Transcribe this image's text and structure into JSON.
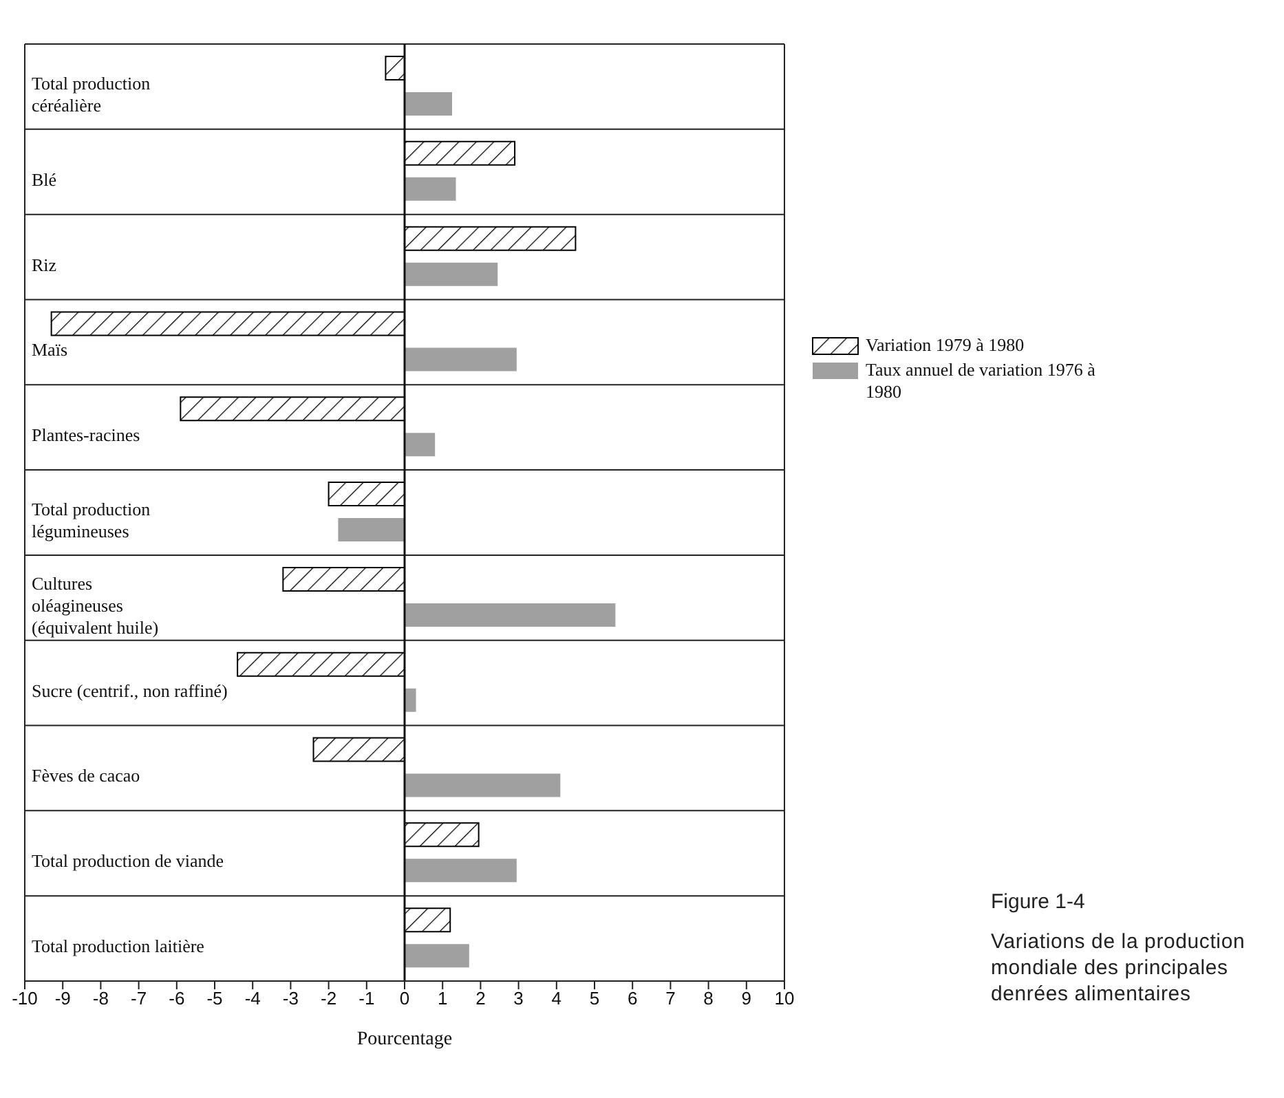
{
  "chart_data": {
    "type": "bar",
    "orientation": "horizontal",
    "title": "Variations de la production mondiale des principales denrées alimentaires",
    "annotations": [
      "Figure 1-4"
    ],
    "xlabel": "Pourcentage",
    "categories": [
      "Total production\ncéréalière",
      "Blé",
      "Riz",
      "Maïs",
      "Plantes-racines",
      "Total production\nlégumineuses",
      "Cultures\noléagineuses\n(équivalent huile)",
      "Sucre (centrif., non raffiné)",
      "Fèves de cacao",
      "Total production de viande",
      "Total production laitière"
    ],
    "series": [
      {
        "name": "Variation 1979 à 1980",
        "color": "#000000",
        "values": [
          -0.5,
          2.9,
          4.5,
          -9.3,
          -5.9,
          -2.0,
          -3.2,
          -4.4,
          -2.4,
          1.95,
          1.2
        ]
      },
      {
        "name": "Taux annuel de variation 1976 à 1980",
        "color": "#a0a0a0",
        "values": [
          1.25,
          1.35,
          2.45,
          2.95,
          0.8,
          -1.75,
          5.55,
          0.3,
          4.1,
          2.95,
          1.7
        ]
      }
    ],
    "xlim": [
      -10,
      10
    ],
    "xticks": [
      -10,
      -9,
      -8,
      -7,
      -6,
      -5,
      -4,
      -3,
      -2,
      -1,
      0,
      1,
      2,
      3,
      4,
      5,
      6,
      7,
      8,
      9,
      10
    ],
    "ref_lines": [
      {
        "axis": "x",
        "value": 0
      }
    ],
    "grid": "y",
    "legend": "top right"
  }
}
